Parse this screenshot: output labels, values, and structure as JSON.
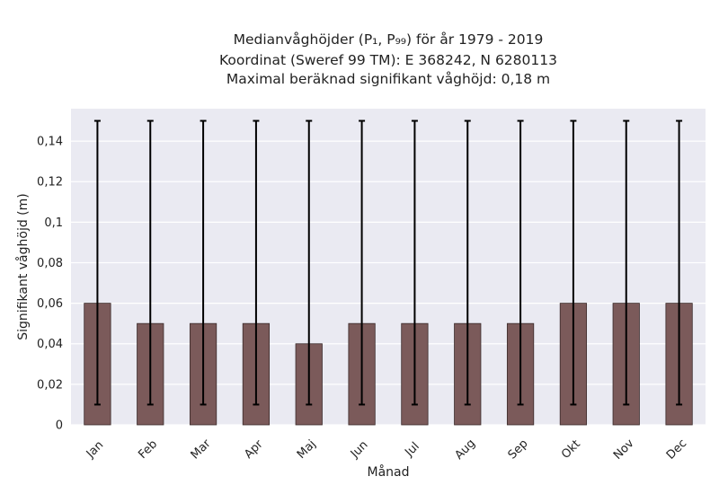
{
  "chart_data": {
    "type": "bar",
    "title_lines": [
      "Medianvåghöjder (P₁, P₉₉) för år 1979 - 2019",
      "Koordinat (Sweref 99 TM): E 368242, N 6280113",
      "Maximal beräknad signifikant våghöjd: 0,18 m"
    ],
    "xlabel": "Månad",
    "ylabel": "Signifikant våghöjd (m)",
    "categories": [
      "Jan",
      "Feb",
      "Mar",
      "Apr",
      "Maj",
      "Jun",
      "Jul",
      "Aug",
      "Sep",
      "Okt",
      "Nov",
      "Dec"
    ],
    "values": [
      0.06,
      0.05,
      0.05,
      0.05,
      0.04,
      0.05,
      0.05,
      0.05,
      0.05,
      0.06,
      0.06,
      0.06
    ],
    "error_low": [
      0.01,
      0.01,
      0.01,
      0.01,
      0.01,
      0.01,
      0.01,
      0.01,
      0.01,
      0.01,
      0.01,
      0.01
    ],
    "error_high": [
      0.15,
      0.15,
      0.15,
      0.15,
      0.15,
      0.15,
      0.15,
      0.15,
      0.15,
      0.15,
      0.15,
      0.15
    ],
    "ylim": [
      0,
      0.156
    ],
    "yticks": [
      0,
      0.02,
      0.04,
      0.06,
      0.08,
      0.1,
      0.12,
      0.14
    ],
    "ytick_labels": [
      "0",
      "0,02",
      "0,04",
      "0,06",
      "0,08",
      "0,1",
      "0,12",
      "0,14"
    ],
    "grid": true,
    "colors": {
      "bar": "#7b5a5a",
      "bar_edge": "#3a2a2a",
      "errorbar": "#000000",
      "plot_background": "#eaeaf2",
      "grid": "#ffffff"
    }
  }
}
